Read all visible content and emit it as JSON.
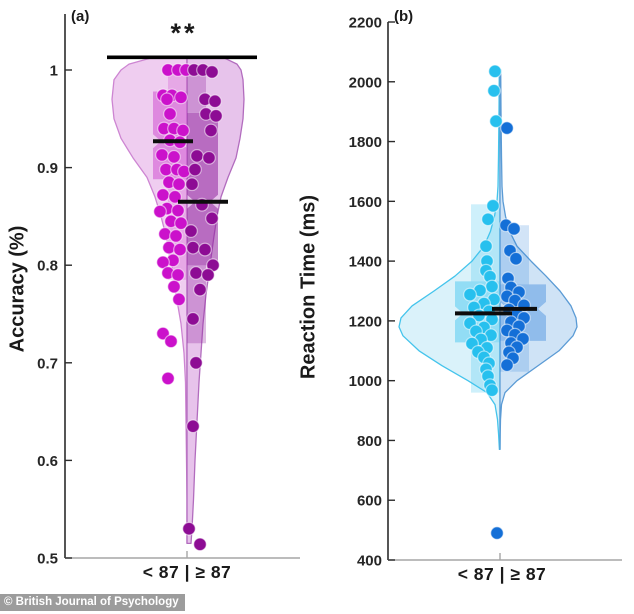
{
  "figure": {
    "copyright": "© British Journal of Psychology"
  },
  "chart_data": [
    {
      "type": "violin-scatter",
      "panel_label": "(a)",
      "ylabel": "Accuracy (%)",
      "ylim": [
        0.5,
        1.05
      ],
      "yticks": [
        1,
        0.9,
        0.8,
        0.7,
        0.6,
        0.5
      ],
      "ytick_labels": [
        "1",
        "0.9",
        "0.8",
        "0.7",
        "0.6",
        "0.5"
      ],
      "xtick_label": "< 87 | ≥ 87",
      "grid": false,
      "significance": {
        "label": "**",
        "line_value": 1.013,
        "line_x": [
          -80,
          70
        ]
      },
      "violin_profile": [
        [
          1.012,
          -37,
          38
        ],
        [
          1.006,
          -58,
          50
        ],
        [
          1.0,
          -66,
          54
        ],
        [
          0.99,
          -73,
          56
        ],
        [
          0.97,
          -75,
          57
        ],
        [
          0.95,
          -73,
          56
        ],
        [
          0.93,
          -66,
          53
        ],
        [
          0.91,
          -54,
          49
        ],
        [
          0.89,
          -40,
          41
        ],
        [
          0.87,
          -32,
          34
        ],
        [
          0.85,
          -26,
          30
        ],
        [
          0.83,
          -21,
          27
        ],
        [
          0.8,
          -15,
          23
        ],
        [
          0.77,
          -11,
          19
        ],
        [
          0.74,
          -6,
          16
        ],
        [
          0.71,
          -3,
          14
        ],
        [
          0.68,
          -1.5,
          12
        ],
        [
          0.64,
          -1,
          10
        ],
        [
          0.6,
          -0.5,
          8
        ],
        [
          0.56,
          0,
          6.5
        ],
        [
          0.53,
          0.5,
          5
        ],
        [
          0.515,
          1,
          4
        ]
      ],
      "groups": [
        {
          "name": "< 87",
          "side": "left",
          "point_color": "#cb11cb",
          "violin_fill": "#efcdf0",
          "violin_edge": "#cd85d2",
          "box_fill": "rgba(207,82,210,0.55)",
          "whisker_fill": "rgba(207,82,210,0.30)",
          "box": {
            "q1": 0.888,
            "q3": 0.978,
            "median": 0.927,
            "whisker_high": 1.0,
            "whisker_low": 0.785
          },
          "box_x": [
            -34,
            0
          ],
          "whisker_x": [
            -19,
            0
          ],
          "median_x": [
            -34,
            6
          ],
          "points": [
            [
              1.0,
              -19
            ],
            [
              1.0,
              -9
            ],
            [
              1.0,
              -1
            ],
            [
              0.974,
              -24
            ],
            [
              0.974,
              -15
            ],
            [
              0.972,
              -6
            ],
            [
              0.97,
              -20
            ],
            [
              0.955,
              -17
            ],
            [
              0.94,
              -23
            ],
            [
              0.94,
              -13
            ],
            [
              0.938,
              -4
            ],
            [
              0.928,
              -17
            ],
            [
              0.926,
              -7
            ],
            [
              0.913,
              -25
            ],
            [
              0.911,
              -13
            ],
            [
              0.898,
              -21
            ],
            [
              0.898,
              -10
            ],
            [
              0.896,
              -3
            ],
            [
              0.885,
              -18
            ],
            [
              0.883,
              -8
            ],
            [
              0.872,
              -24
            ],
            [
              0.87,
              -12
            ],
            [
              0.858,
              -20
            ],
            [
              0.856,
              -9
            ],
            [
              0.855,
              -27
            ],
            [
              0.845,
              -16
            ],
            [
              0.843,
              -6
            ],
            [
              0.832,
              -22
            ],
            [
              0.83,
              -11
            ],
            [
              0.818,
              -18
            ],
            [
              0.816,
              -7
            ],
            [
              0.805,
              -14
            ],
            [
              0.803,
              -24
            ],
            [
              0.792,
              -19
            ],
            [
              0.79,
              -9
            ],
            [
              0.778,
              -13
            ],
            [
              0.765,
              -8
            ],
            [
              0.73,
              -24
            ],
            [
              0.722,
              -16
            ],
            [
              0.684,
              -19
            ]
          ]
        },
        {
          "name": "≥ 87",
          "side": "right",
          "point_color": "#8d0c94",
          "violin_fill": "#e7c3eb",
          "violin_edge": "#b26cbe",
          "box_fill": "rgba(146,36,158,0.55)",
          "whisker_fill": "rgba(146,36,158,0.30)",
          "box": {
            "q1": 0.8,
            "q3": 0.956,
            "median": 0.865,
            "whisker_high": 1.0,
            "whisker_low": 0.72
          },
          "box_x": [
            0,
            31
          ],
          "whisker_x": [
            0,
            19
          ],
          "median_x": [
            -9,
            41
          ],
          "points": [
            [
              1.0,
              7
            ],
            [
              1.0,
              16
            ],
            [
              0.998,
              25
            ],
            [
              0.97,
              18
            ],
            [
              0.968,
              28
            ],
            [
              0.955,
              19
            ],
            [
              0.953,
              29
            ],
            [
              0.938,
              24
            ],
            [
              0.912,
              10
            ],
            [
              0.91,
              22
            ],
            [
              0.898,
              8
            ],
            [
              0.883,
              5
            ],
            [
              0.862,
              15
            ],
            [
              0.848,
              25
            ],
            [
              0.835,
              4
            ],
            [
              0.818,
              6
            ],
            [
              0.816,
              18
            ],
            [
              0.8,
              26
            ],
            [
              0.792,
              9
            ],
            [
              0.79,
              21
            ],
            [
              0.775,
              13
            ],
            [
              0.745,
              6
            ],
            [
              0.7,
              9
            ],
            [
              0.635,
              6
            ],
            [
              0.53,
              2
            ],
            [
              0.514,
              13
            ]
          ]
        }
      ]
    },
    {
      "type": "violin-scatter",
      "panel_label": "(b)",
      "ylabel": "Reaction Time (ms)",
      "ylim": [
        400,
        2200
      ],
      "yticks": [
        2200,
        2000,
        1800,
        1600,
        1400,
        1200,
        1000,
        800,
        600,
        400
      ],
      "ytick_labels": [
        "2200",
        "2000",
        "1800",
        "1600",
        "1400",
        "1200",
        "1000",
        "800",
        "600",
        "400"
      ],
      "xtick_label": "< 87 | ≥ 87",
      "grid": false,
      "violin_profile": [
        [
          2040,
          -0.7,
          0.7
        ],
        [
          1900,
          -1,
          1
        ],
        [
          1750,
          -1.5,
          1.5
        ],
        [
          1650,
          -2,
          2
        ],
        [
          1600,
          -3,
          3
        ],
        [
          1550,
          -5.5,
          5.5
        ],
        [
          1500,
          -9.5,
          9.5
        ],
        [
          1450,
          -16,
          17
        ],
        [
          1400,
          -28,
          31
        ],
        [
          1350,
          -45,
          46
        ],
        [
          1300,
          -66,
          60
        ],
        [
          1250,
          -88,
          71
        ],
        [
          1210,
          -99,
          76
        ],
        [
          1180,
          -101,
          77
        ],
        [
          1150,
          -97,
          73
        ],
        [
          1100,
          -81,
          59
        ],
        [
          1050,
          -58,
          38
        ],
        [
          1000,
          -32,
          17
        ],
        [
          960,
          -13,
          5
        ],
        [
          920,
          -5,
          1.5
        ],
        [
          870,
          -2.5,
          0.5
        ],
        [
          820,
          -1.4,
          0.2
        ],
        [
          770,
          -0.6,
          0
        ]
      ],
      "groups": [
        {
          "name": "< 87",
          "side": "left",
          "point_color": "#27c0ee",
          "violin_fill": "#daf2fa",
          "violin_edge": "#44c4ec",
          "box_fill": "rgba(58,195,240,0.45)",
          "whisker_fill": "rgba(58,195,240,0.25)",
          "box": {
            "q1": 1128,
            "q3": 1332,
            "median": 1225,
            "whisker_high": 1590,
            "whisker_low": 960
          },
          "box_x": [
            -45,
            0
          ],
          "whisker_x": [
            -29,
            0
          ],
          "median_x": [
            -45,
            12
          ],
          "points": [
            [
              2035,
              -5
            ],
            [
              1970,
              -6
            ],
            [
              1868,
              -4
            ],
            [
              1585,
              -7
            ],
            [
              1540,
              -12
            ],
            [
              1450,
              -14
            ],
            [
              1400,
              -13
            ],
            [
              1368,
              -14
            ],
            [
              1348,
              -10
            ],
            [
              1315,
              -8
            ],
            [
              1302,
              -20
            ],
            [
              1288,
              -30
            ],
            [
              1272,
              -6
            ],
            [
              1258,
              -16
            ],
            [
              1245,
              -26
            ],
            [
              1232,
              -11
            ],
            [
              1218,
              -21
            ],
            [
              1205,
              -8
            ],
            [
              1192,
              -30
            ],
            [
              1178,
              -16
            ],
            [
              1165,
              -24
            ],
            [
              1152,
              -9
            ],
            [
              1138,
              -19
            ],
            [
              1124,
              -28
            ],
            [
              1110,
              -13
            ],
            [
              1096,
              -22
            ],
            [
              1078,
              -16
            ],
            [
              1058,
              -11
            ],
            [
              1038,
              -14
            ],
            [
              1015,
              -12
            ],
            [
              985,
              -10
            ],
            [
              968,
              -8
            ]
          ]
        },
        {
          "name": "≥ 87",
          "side": "right",
          "point_color": "#146fd7",
          "violin_fill": "#cfe3f6",
          "violin_edge": "#5b9bd5",
          "box_fill": "rgba(50,130,220,0.40)",
          "whisker_fill": "rgba(50,130,220,0.22)",
          "box": {
            "q1": 1133,
            "q3": 1322,
            "median": 1240,
            "whisker_high": 1520,
            "whisker_low": 1030
          },
          "box_x": [
            0,
            46
          ],
          "whisker_x": [
            0,
            29
          ],
          "median_x": [
            -8,
            37
          ],
          "points": [
            [
              1845,
              7
            ],
            [
              1520,
              6
            ],
            [
              1508,
              14
            ],
            [
              1435,
              10
            ],
            [
              1408,
              16
            ],
            [
              1342,
              8
            ],
            [
              1312,
              11
            ],
            [
              1296,
              19
            ],
            [
              1282,
              7
            ],
            [
              1268,
              15
            ],
            [
              1252,
              24
            ],
            [
              1238,
              9
            ],
            [
              1224,
              17
            ],
            [
              1210,
              24
            ],
            [
              1196,
              11
            ],
            [
              1182,
              19
            ],
            [
              1168,
              7
            ],
            [
              1154,
              15
            ],
            [
              1140,
              23
            ],
            [
              1126,
              11
            ],
            [
              1112,
              17
            ],
            [
              1095,
              9
            ],
            [
              1075,
              13
            ],
            [
              1052,
              7
            ],
            [
              490,
              -3
            ]
          ]
        }
      ]
    }
  ]
}
